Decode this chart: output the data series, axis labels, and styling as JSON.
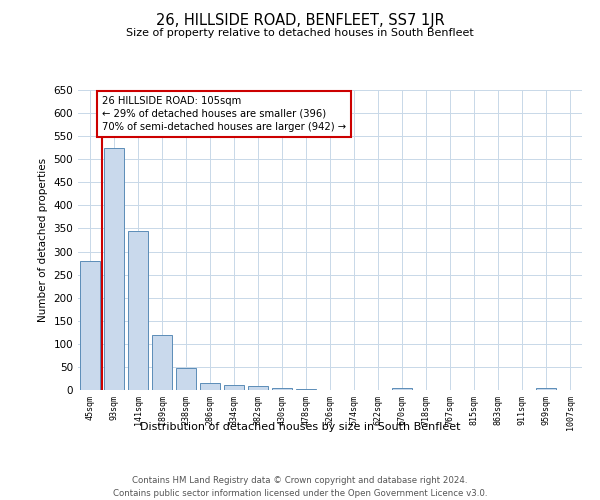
{
  "title": "26, HILLSIDE ROAD, BENFLEET, SS7 1JR",
  "subtitle": "Size of property relative to detached houses in South Benfleet",
  "xlabel": "Distribution of detached houses by size in South Benfleet",
  "ylabel": "Number of detached properties",
  "footer_line1": "Contains HM Land Registry data © Crown copyright and database right 2024.",
  "footer_line2": "Contains public sector information licensed under the Open Government Licence v3.0.",
  "categories": [
    "45sqm",
    "93sqm",
    "141sqm",
    "189sqm",
    "238sqm",
    "286sqm",
    "334sqm",
    "382sqm",
    "430sqm",
    "478sqm",
    "526sqm",
    "574sqm",
    "622sqm",
    "670sqm",
    "718sqm",
    "767sqm",
    "815sqm",
    "863sqm",
    "911sqm",
    "959sqm",
    "1007sqm"
  ],
  "values": [
    280,
    525,
    345,
    120,
    48,
    16,
    11,
    8,
    5,
    3,
    0,
    0,
    0,
    5,
    0,
    0,
    0,
    0,
    0,
    5,
    0
  ],
  "bar_color": "#c9d9ec",
  "bar_edge_color": "#5b8db8",
  "ylim": [
    0,
    650
  ],
  "yticks": [
    0,
    50,
    100,
    150,
    200,
    250,
    300,
    350,
    400,
    450,
    500,
    550,
    600,
    650
  ],
  "property_line_x": 1.0,
  "property_line_color": "#cc0000",
  "annotation_text": "26 HILLSIDE ROAD: 105sqm\n← 29% of detached houses are smaller (396)\n70% of semi-detached houses are larger (942) →",
  "annotation_box_color": "#ffffff",
  "annotation_box_edge": "#cc0000",
  "bg_color": "#ffffff",
  "grid_color": "#c8d8e8"
}
